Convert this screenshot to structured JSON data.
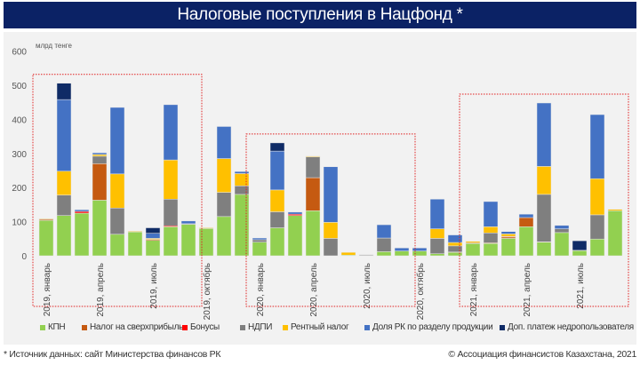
{
  "header": {
    "title": "Налоговые поступления в Нацфонд *"
  },
  "footer": {
    "source": "* Источник данных: сайт Министерства финансов РК",
    "copyright": "© Ассоциация финансистов Казахстана, 2021"
  },
  "chart_data": {
    "type": "bar",
    "stacked": true,
    "title": "Налоговые поступления в Нацфонд *",
    "ylabel": "млрд тенге",
    "ylim": [
      0,
      600
    ],
    "yticks": [
      0,
      100,
      200,
      300,
      400,
      500,
      600
    ],
    "legend_position": "bottom",
    "categories": [
      "2019-01",
      "2019-02",
      "2019-03",
      "2019-04",
      "2019-05",
      "2019-06",
      "2019-07",
      "2019-08",
      "2019-09",
      "2019-10",
      "2019-11",
      "2019-12",
      "2020-01",
      "2020-02",
      "2020-03",
      "2020-04",
      "2020-05",
      "2020-06",
      "2020-07",
      "2020-08",
      "2020-09",
      "2020-10",
      "2020-11",
      "2020-12",
      "2021-01",
      "2021-02",
      "2021-03",
      "2021-04",
      "2021-05",
      "2021-06",
      "2021-07",
      "2021-08",
      "2021-09"
    ],
    "tick_labels": [
      {
        "index": 0,
        "label": "2019, январь"
      },
      {
        "index": 3,
        "label": "2019, апрель"
      },
      {
        "index": 6,
        "label": "2019, июль"
      },
      {
        "index": 9,
        "label": "2019, октябрь"
      },
      {
        "index": 12,
        "label": "2020, январь"
      },
      {
        "index": 15,
        "label": "2020, апрель"
      },
      {
        "index": 18,
        "label": "2020, июль"
      },
      {
        "index": 21,
        "label": "2020, октябрь"
      },
      {
        "index": 24,
        "label": "2021, январь"
      },
      {
        "index": 27,
        "label": "2021, апрель"
      },
      {
        "index": 30,
        "label": "2021, июль"
      }
    ],
    "highlight_ranges": [
      [
        0,
        8
      ],
      [
        12,
        20
      ],
      [
        24,
        32
      ]
    ],
    "series": [
      {
        "name": "КПН",
        "color": "#92d050",
        "values": [
          104,
          118,
          125,
          163,
          63,
          70,
          45,
          85,
          92,
          80,
          115,
          180,
          40,
          82,
          118,
          132,
          0,
          2,
          1,
          12,
          14,
          14,
          6,
          10,
          36,
          36,
          51,
          85,
          40,
          68,
          15,
          49,
          132
        ]
      },
      {
        "name": "Налог на сверхприбыль",
        "color": "#c55a11",
        "values": [
          3,
          0,
          0,
          107,
          0,
          0,
          3,
          0,
          0,
          0,
          0,
          0,
          0,
          0,
          0,
          97,
          0,
          0,
          0,
          0,
          0,
          0,
          0,
          0,
          2,
          2,
          4,
          27,
          0,
          0,
          1,
          0,
          0
        ]
      },
      {
        "name": "Бонусы",
        "color": "#ff0000",
        "values": [
          0,
          0,
          5,
          0,
          0,
          0,
          0,
          3,
          0,
          0,
          0,
          0,
          0,
          0,
          4,
          0,
          0,
          0,
          0,
          0,
          0,
          0,
          0,
          1,
          0,
          0,
          2,
          0,
          1,
          0,
          0,
          0,
          0
        ]
      },
      {
        "name": "НДПИ",
        "color": "#7f7f7f",
        "values": [
          0,
          60,
          0,
          22,
          77,
          0,
          0,
          78,
          2,
          0,
          71,
          25,
          7,
          47,
          0,
          61,
          51,
          0,
          2,
          40,
          0,
          0,
          45,
          18,
          0,
          29,
          0,
          0,
          139,
          11,
          0,
          71,
          0
        ]
      },
      {
        "name": "Рентный налог",
        "color": "#ffc000",
        "values": [
          2,
          70,
          0,
          5,
          100,
          2,
          3,
          115,
          0,
          2,
          99,
          36,
          0,
          64,
          0,
          2,
          47,
          8,
          0,
          0,
          0,
          0,
          28,
          10,
          4,
          18,
          7,
          0,
          82,
          0,
          0,
          106,
          4
        ]
      },
      {
        "name": "Доля РК по разделу продукции",
        "color": "#4472c4",
        "values": [
          0,
          210,
          5,
          5,
          195,
          0,
          15,
          162,
          8,
          0,
          94,
          6,
          5,
          114,
          6,
          0,
          163,
          0,
          0,
          39,
          9,
          9,
          87,
          22,
          0,
          74,
          7,
          10,
          186,
          10,
          0,
          188,
          0
        ]
      },
      {
        "name": "Доп. платеж недропользователя",
        "color": "#0f2b66",
        "values": [
          0,
          48,
          0,
          0,
          0,
          0,
          16,
          0,
          0,
          0,
          0,
          0,
          0,
          24,
          0,
          0,
          0,
          0,
          0,
          0,
          0,
          0,
          0,
          0,
          0,
          0,
          0,
          0,
          0,
          0,
          28,
          0,
          0
        ]
      }
    ]
  }
}
